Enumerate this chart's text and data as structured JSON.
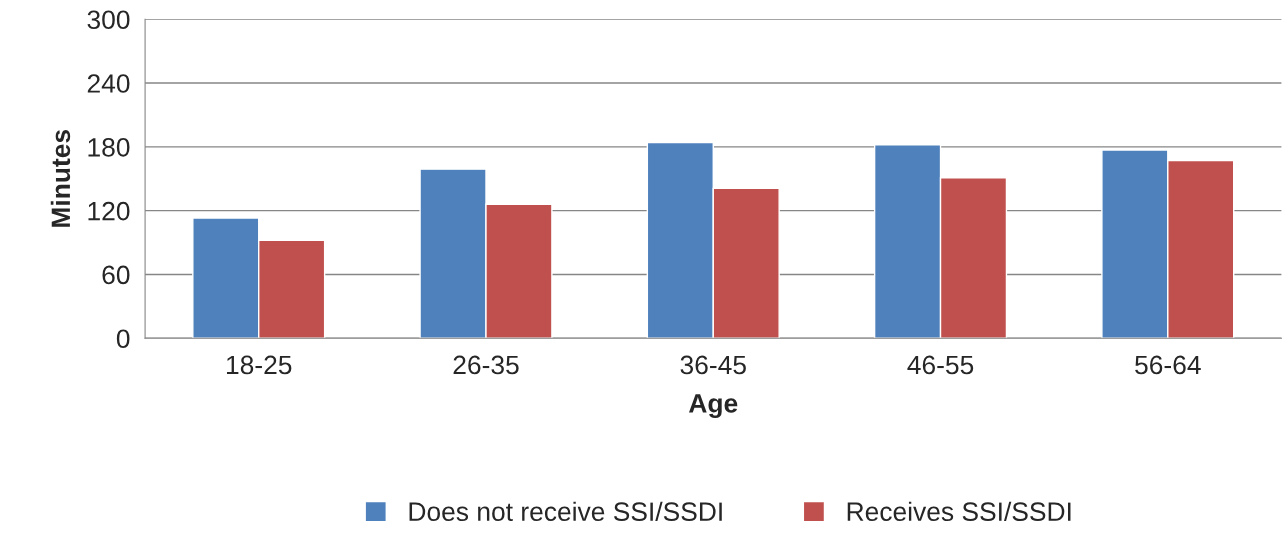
{
  "chart_data": {
    "type": "bar",
    "xlabel": "Age",
    "ylabel": "Minutes",
    "categories": [
      "18-25",
      "26-35",
      "36-45",
      "46-55",
      "56-64"
    ],
    "series": [
      {
        "name": "Does not receive SSI/SSDI",
        "color": "#4f81bd",
        "values": [
          113,
          159,
          184,
          182,
          177
        ]
      },
      {
        "name": "Receives SSI/SSDI",
        "color": "#c0504d",
        "values": [
          92,
          126,
          141,
          151,
          167
        ]
      }
    ],
    "ylim": [
      0,
      300
    ],
    "yticks": [
      0,
      60,
      120,
      180,
      240,
      300
    ],
    "grid": "y",
    "legend": "bottom"
  }
}
